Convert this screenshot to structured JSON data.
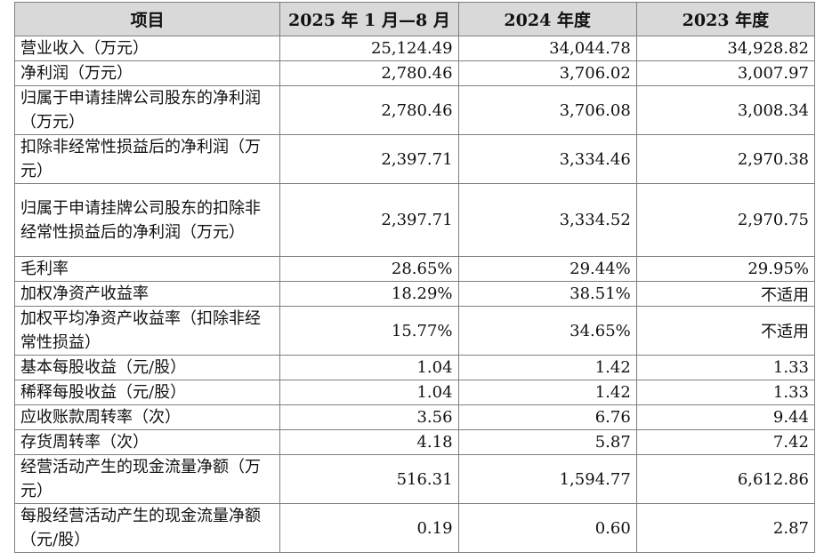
{
  "table": {
    "headers": [
      "项目",
      "2025 年 1 月—8 月",
      "2024 年度",
      "2023 年度"
    ],
    "rows": [
      {
        "label": "营业收入（万元）",
        "v1": "25,124.49",
        "v2": "34,044.78",
        "v3": "34,928.82"
      },
      {
        "label": "净利润（万元）",
        "v1": "2,780.46",
        "v2": "3,706.02",
        "v3": "3,007.97"
      },
      {
        "label": "归属于申请挂牌公司股东的净利润（万元）",
        "v1": "2,780.46",
        "v2": "3,706.08",
        "v3": "3,008.34"
      },
      {
        "label": "扣除非经常性损益后的净利润（万元）",
        "v1": "2,397.71",
        "v2": "3,334.46",
        "v3": "2,970.38"
      },
      {
        "label": "归属于申请挂牌公司股东的扣除非经常性损益后的净利润（万元）",
        "v1": "2,397.71",
        "v2": "3,334.52",
        "v3": "2,970.75"
      },
      {
        "label": "毛利率",
        "v1": "28.65%",
        "v2": "29.44%",
        "v3": "29.95%"
      },
      {
        "label": "加权净资产收益率",
        "v1": "18.29%",
        "v2": "38.51%",
        "v3": "不适用"
      },
      {
        "label": "加权平均净资产收益率（扣除非经常性损益）",
        "v1": "15.77%",
        "v2": "34.65%",
        "v3": "不适用"
      },
      {
        "label": "基本每股收益（元/股）",
        "v1": "1.04",
        "v2": "1.42",
        "v3": "1.33"
      },
      {
        "label": "稀释每股收益（元/股）",
        "v1": "1.04",
        "v2": "1.42",
        "v3": "1.33"
      },
      {
        "label": "应收账款周转率（次）",
        "v1": "3.56",
        "v2": "6.76",
        "v3": "9.44"
      },
      {
        "label": "存货周转率（次）",
        "v1": "4.18",
        "v2": "5.87",
        "v3": "7.42"
      },
      {
        "label": "经营活动产生的现金流量净额（万元）",
        "v1": "516.31",
        "v2": "1,594.77",
        "v3": "6,612.86"
      },
      {
        "label": "每股经营活动产生的现金流量净额（元/股）",
        "v1": "0.19",
        "v2": "0.60",
        "v3": "2.87"
      }
    ]
  }
}
